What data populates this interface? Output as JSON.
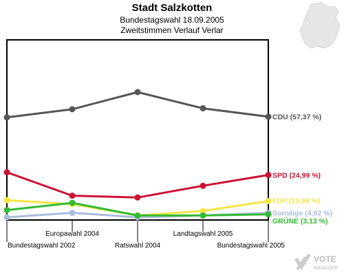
{
  "header": {
    "title": "Stadt Salzkotten",
    "subtitle": "Bundestagswahl 18.09.2005",
    "subtitle2": "Zweitstimmen Verlauf Verlar"
  },
  "logo": {
    "line1": "VOTE",
    "line2": "MANAGER"
  },
  "chart_data": {
    "type": "line",
    "title": "Stadt Salzkotten",
    "x": [
      "Bundestagswahl 2002",
      "Europawahl 2004",
      "Ratswahl 2004",
      "Landtagswahl 2005",
      "Bundestagswahl 2005"
    ],
    "x_label_rows": [
      "bottom",
      "top",
      "bottom",
      "top",
      "bottom"
    ],
    "ylim": [
      0,
      100
    ],
    "grid": false,
    "series": [
      {
        "name": "CDU",
        "label": "CDU (57,37 %)",
        "color": "#555555",
        "values": [
          57.0,
          61.5,
          71.0,
          62.0,
          57.37
        ]
      },
      {
        "name": "SPD",
        "label": "SPD (24,99 %)",
        "color": "#cc1133",
        "values": [
          26.5,
          13.5,
          12.5,
          19.0,
          24.99
        ]
      },
      {
        "name": "FDP",
        "label": "FDP (10,49 %)",
        "color": "#f5e642",
        "values": [
          11.0,
          8.8,
          2.5,
          5.0,
          10.49
        ]
      },
      {
        "name": "Sonstige",
        "label": "Sonstige (4,02 %)",
        "color": "#aabbdd",
        "values": [
          1.5,
          4.0,
          1.5,
          2.5,
          4.02
        ]
      },
      {
        "name": "GRÜNE",
        "label": "GRÜNE (3,13 %)",
        "color": "#33bb33",
        "values": [
          5.5,
          9.5,
          2.5,
          2.5,
          3.13
        ]
      }
    ]
  }
}
